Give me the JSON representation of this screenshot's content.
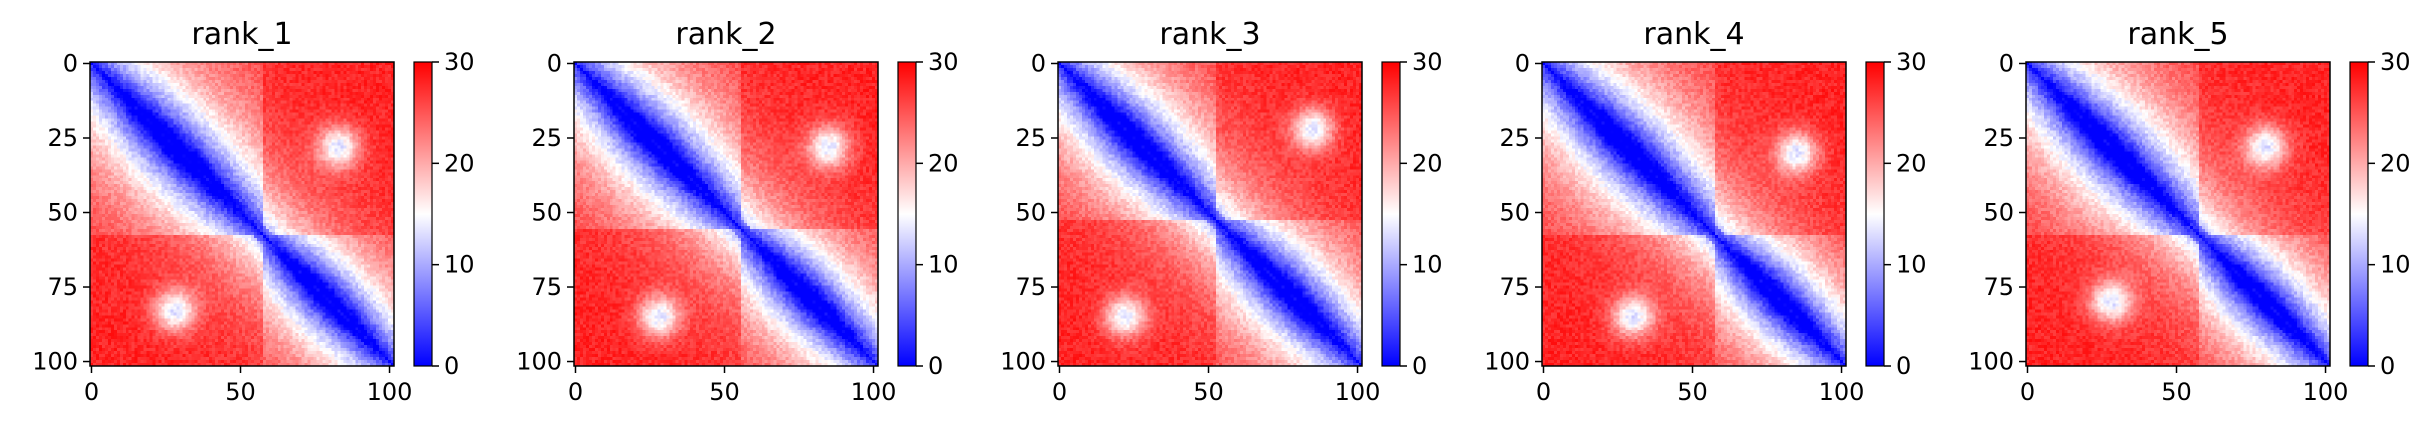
{
  "chart_data": [
    {
      "type": "heatmap",
      "title": "rank_1",
      "xticks": [
        0,
        50,
        100
      ],
      "yticks": [
        0,
        25,
        50,
        75,
        100
      ],
      "colorbar": {
        "ticks": [
          0,
          10,
          20,
          30
        ],
        "range": [
          0,
          30
        ],
        "colormap": "bwr"
      },
      "matrix_size": 102,
      "domains": [
        {
          "start": 0,
          "end": 57
        },
        {
          "start": 58,
          "end": 101
        }
      ],
      "off_diagonal_contacts": [
        {
          "row": 28,
          "col": 83
        }
      ],
      "colors": {
        "low": "#0000ff",
        "mid": "#ffffff",
        "high": "#ff0000"
      }
    },
    {
      "type": "heatmap",
      "title": "rank_2",
      "xticks": [
        0,
        50,
        100
      ],
      "yticks": [
        0,
        25,
        50,
        75,
        100
      ],
      "colorbar": {
        "ticks": [
          0,
          10,
          20,
          30
        ],
        "range": [
          0,
          30
        ],
        "colormap": "bwr"
      },
      "matrix_size": 102,
      "domains": [
        {
          "start": 0,
          "end": 55
        },
        {
          "start": 56,
          "end": 101
        }
      ],
      "off_diagonal_contacts": [
        {
          "row": 28,
          "col": 85
        }
      ],
      "colors": {
        "low": "#0000ff",
        "mid": "#ffffff",
        "high": "#ff0000"
      }
    },
    {
      "type": "heatmap",
      "title": "rank_3",
      "xticks": [
        0,
        50,
        100
      ],
      "yticks": [
        0,
        25,
        50,
        75,
        100
      ],
      "colorbar": {
        "ticks": [
          0,
          10,
          20,
          30
        ],
        "range": [
          0,
          30
        ],
        "colormap": "bwr"
      },
      "matrix_size": 102,
      "domains": [
        {
          "start": 0,
          "end": 52
        },
        {
          "start": 53,
          "end": 101
        }
      ],
      "off_diagonal_contacts": [
        {
          "row": 22,
          "col": 85
        }
      ],
      "colors": {
        "low": "#0000ff",
        "mid": "#ffffff",
        "high": "#ff0000"
      }
    },
    {
      "type": "heatmap",
      "title": "rank_4",
      "xticks": [
        0,
        50,
        100
      ],
      "yticks": [
        0,
        25,
        50,
        75,
        100
      ],
      "colorbar": {
        "ticks": [
          0,
          10,
          20,
          30
        ],
        "range": [
          0,
          30
        ],
        "colormap": "bwr"
      },
      "matrix_size": 102,
      "domains": [
        {
          "start": 0,
          "end": 57
        },
        {
          "start": 58,
          "end": 101
        }
      ],
      "off_diagonal_contacts": [
        {
          "row": 30,
          "col": 85
        }
      ],
      "colors": {
        "low": "#0000ff",
        "mid": "#ffffff",
        "high": "#ff0000"
      }
    },
    {
      "type": "heatmap",
      "title": "rank_5",
      "xticks": [
        0,
        50,
        100
      ],
      "yticks": [
        0,
        25,
        50,
        75,
        100
      ],
      "colorbar": {
        "ticks": [
          0,
          10,
          20,
          30
        ],
        "range": [
          0,
          30
        ],
        "colormap": "bwr"
      },
      "matrix_size": 102,
      "domains": [
        {
          "start": 0,
          "end": 57
        },
        {
          "start": 58,
          "end": 101
        }
      ],
      "off_diagonal_contacts": [
        {
          "row": 28,
          "col": 80
        }
      ],
      "colors": {
        "low": "#0000ff",
        "mid": "#ffffff",
        "high": "#ff0000"
      }
    }
  ]
}
